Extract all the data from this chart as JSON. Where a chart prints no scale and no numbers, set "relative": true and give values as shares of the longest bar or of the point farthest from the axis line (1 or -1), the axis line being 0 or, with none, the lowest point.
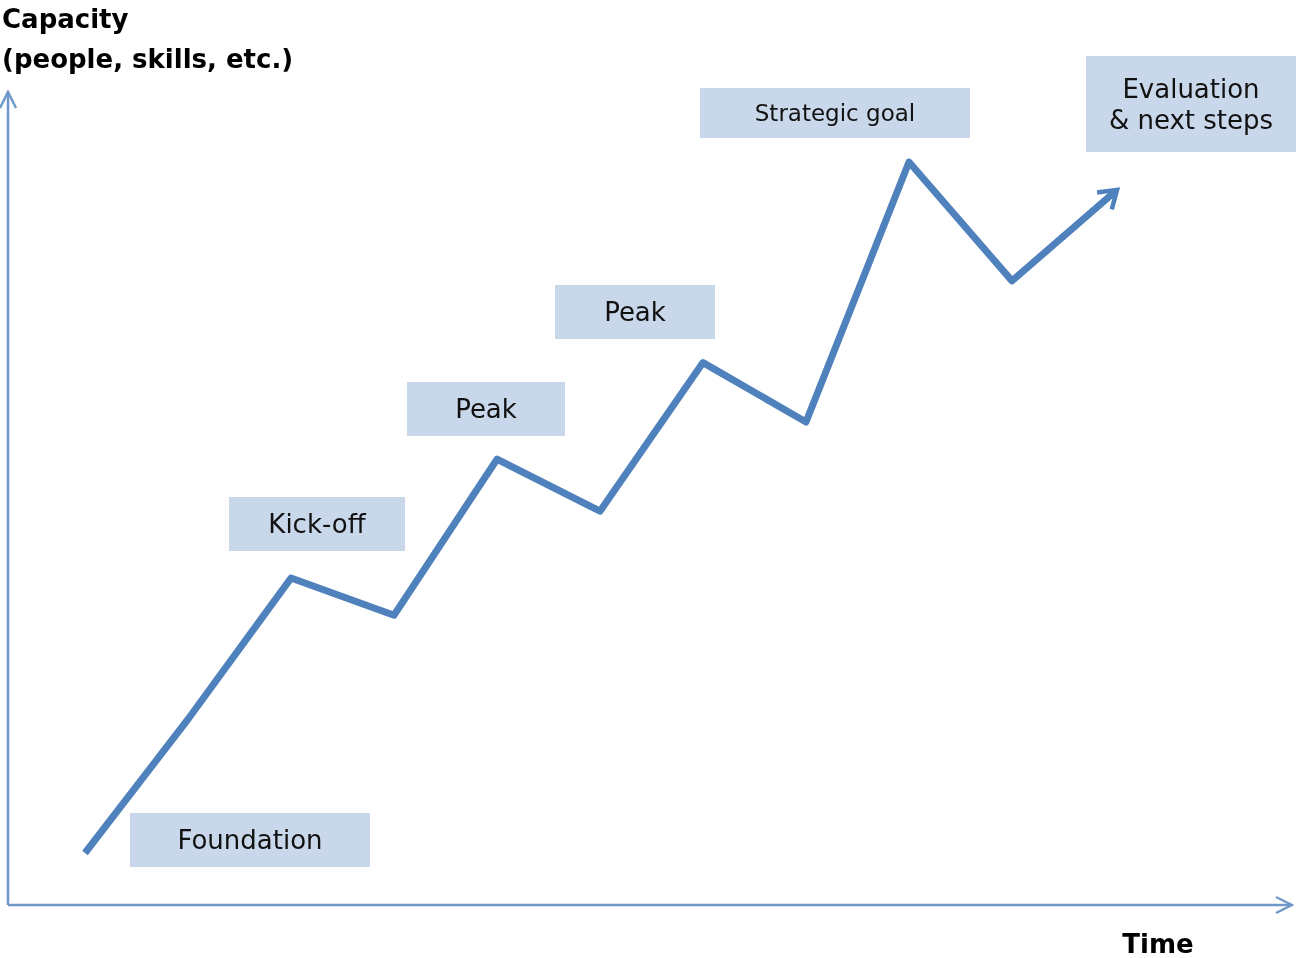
{
  "chart_data": {
    "type": "line",
    "relative": true,
    "xlabel": "Time",
    "ylabel": "Capacity\n(people, skills, etc.)",
    "categories": [
      null,
      null,
      null,
      null,
      null,
      null,
      null,
      null,
      null,
      null,
      null
    ],
    "values": [
      0.07,
      0.25,
      0.44,
      0.39,
      0.6,
      0.53,
      0.73,
      0.65,
      1,
      0.84,
      0.96
    ],
    "color": "#4f81bd",
    "annotations": [
      "Foundation",
      "Kick-off",
      "Peak",
      "Peak",
      "Strategic goal",
      "Evaluation\n& next steps"
    ]
  }
}
